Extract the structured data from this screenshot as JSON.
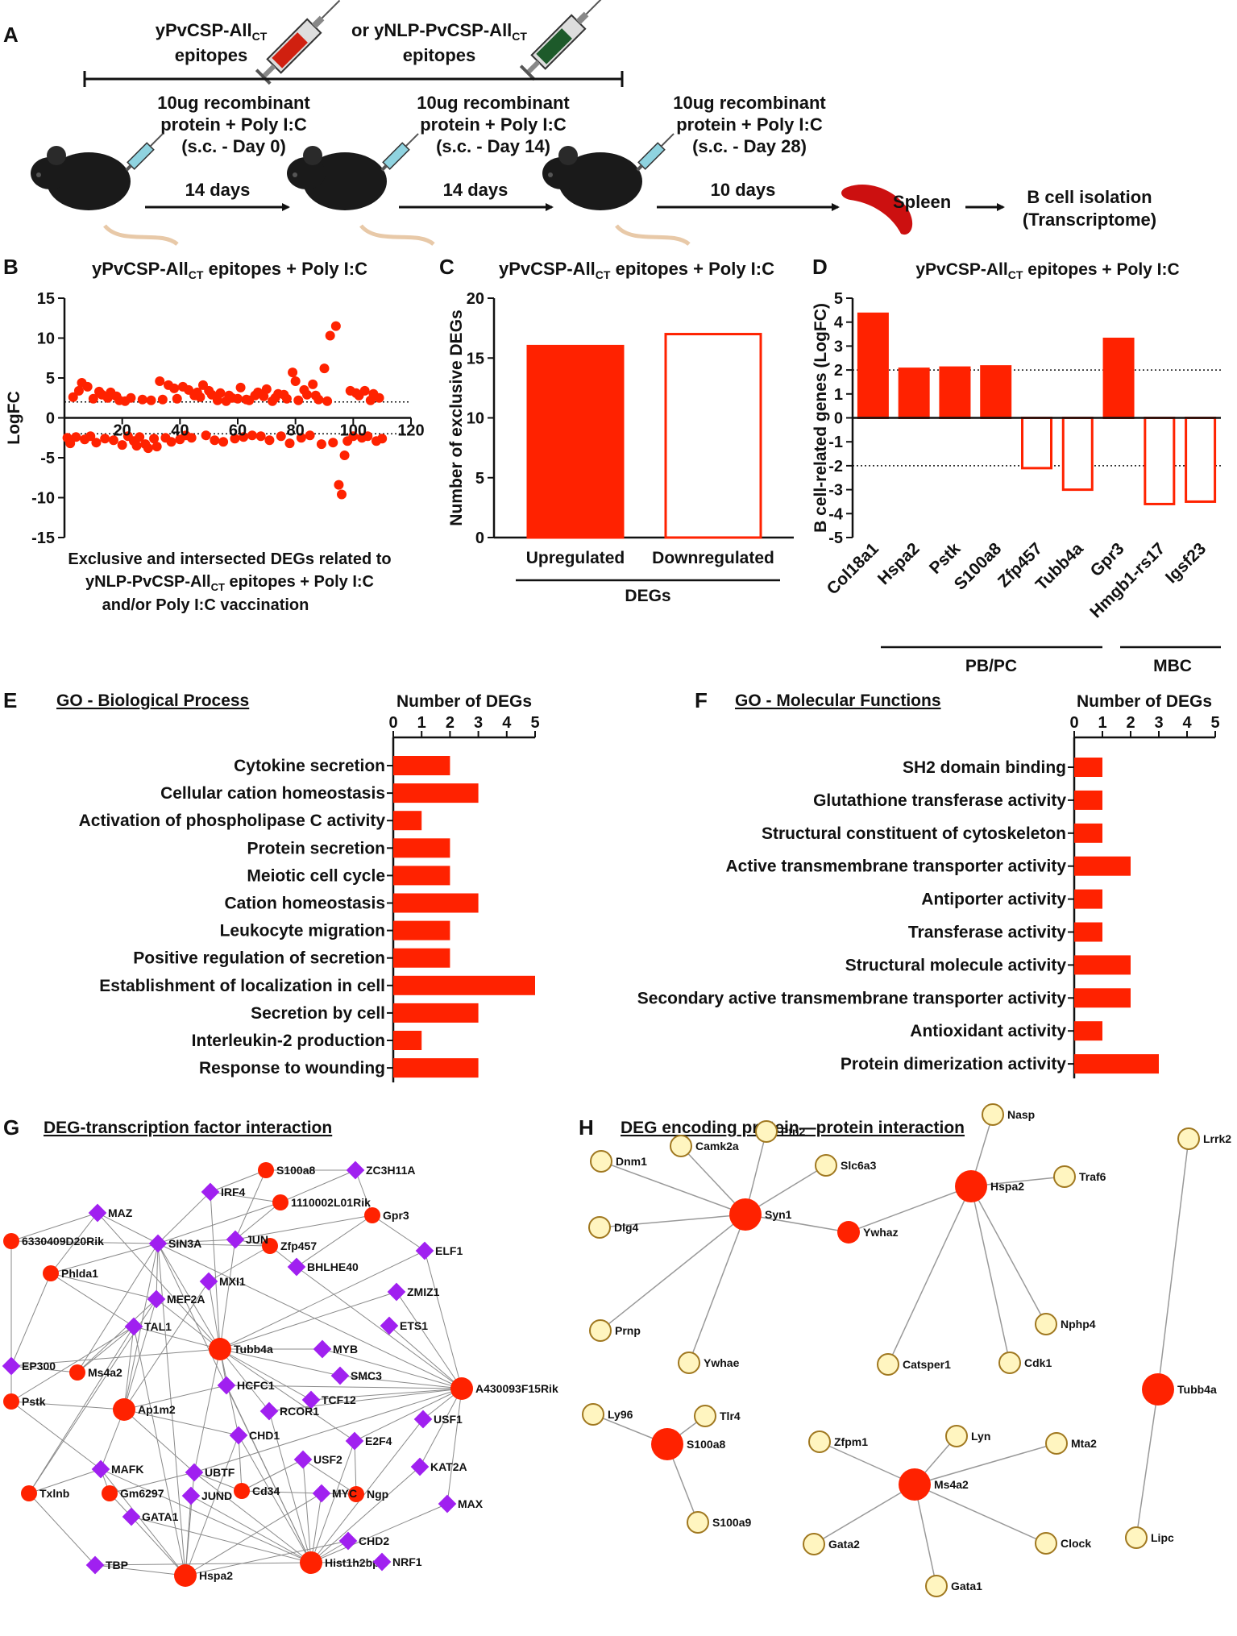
{
  "panel_labels": {
    "A": "A",
    "B": "B",
    "C": "C",
    "D": "D",
    "E": "E",
    "F": "F",
    "G": "G",
    "H": "H"
  },
  "colors": {
    "red": "#ff2200",
    "purple": "#a020f0",
    "cream": "#fff5c0",
    "cream_stroke": "#a07820",
    "edge": "#999999"
  },
  "panelA": {
    "epitope1_line1": "yPvCSP-All",
    "epitope1_sub": "CT",
    "epitope1_line2": "epitopes",
    "epitope2_line1": "or yNLP-PvCSP-All",
    "epitope2_sub": "CT",
    "epitope2_line2": "epitopes",
    "dose_line1": "10ug recombinant",
    "dose_line2": "protein + Poly I:C",
    "dose_day0": "(s.c. - Day 0)",
    "dose_day14": "(s.c. - Day 14)",
    "dose_day28": "(s.c. - Day 28)",
    "interval1": "14 days",
    "interval2": "14 days",
    "interval3": "10 days",
    "spleen": "Spleen",
    "isolation_line1": "B cell isolation",
    "isolation_line2": "(Transcriptome)"
  },
  "panelB": {
    "title_pre": "yPvCSP-All",
    "title_sub": "CT",
    "title_post": " epitopes + Poly I:C",
    "xlabel_line1": "Exclusive and intersected DEGs related to",
    "xlabel_line2_pre": "yNLP-PvCSP-All",
    "xlabel_line2_sub": "CT",
    "xlabel_line2_post": " epitopes + Poly I:C",
    "xlabel_line3": "and/or Poly I:C vaccination"
  },
  "panelC": {
    "title_pre": "yPvCSP-All",
    "title_sub": "CT",
    "title_post": " epitopes + Poly I:C",
    "group_label": "DEGs"
  },
  "panelD": {
    "title_pre": "yPvCSP-All",
    "title_sub": "CT",
    "title_post": " epitopes + Poly I:C",
    "group1": "PB/PC",
    "group2": "MBC"
  },
  "panelE": {
    "title": "GO - Biological Process"
  },
  "panelF": {
    "title": "GO - Molecular Functions"
  },
  "panelG": {
    "title": "DEG-transcription factor interaction"
  },
  "panelH": {
    "title": "DEG encoding  protein—protein interaction"
  },
  "chart_data": [
    {
      "id": "B",
      "type": "scatter",
      "title": "yPvCSP-AllCT epitopes + Poly I:C",
      "ylabel": "LogFC",
      "xlim": [
        0,
        120
      ],
      "ylim": [
        -15,
        15
      ],
      "xticks": [
        20,
        40,
        60,
        80,
        100,
        120
      ],
      "yticks": [
        -15,
        -10,
        -5,
        0,
        5,
        10,
        15
      ],
      "thresholds": [
        2,
        -2
      ],
      "x": [
        1,
        2,
        3,
        4,
        5,
        6,
        7,
        8,
        9,
        10,
        11,
        12,
        13,
        14,
        15,
        16,
        17,
        18,
        19,
        20,
        21,
        22,
        23,
        24,
        25,
        26,
        27,
        28,
        29,
        30,
        31,
        32,
        33,
        34,
        35,
        36,
        37,
        38,
        39,
        40,
        41,
        42,
        43,
        44,
        45,
        46,
        47,
        48,
        49,
        50,
        51,
        52,
        53,
        54,
        55,
        56,
        57,
        58,
        59,
        60,
        61,
        62,
        63,
        64,
        65,
        66,
        67,
        68,
        69,
        70,
        71,
        72,
        73,
        74,
        75,
        76,
        77,
        78,
        79,
        80,
        81,
        82,
        83,
        84,
        85,
        86,
        87,
        88,
        89,
        90,
        91,
        92,
        93,
        94,
        95,
        96,
        97,
        98,
        99,
        100,
        101,
        102,
        103,
        104,
        105,
        106,
        107,
        108,
        109,
        110
      ],
      "y": [
        -2.5,
        -3.2,
        2.6,
        -2.4,
        3.4,
        4.4,
        -2.7,
        3.9,
        -2.3,
        2.4,
        -3.1,
        3.3,
        2.9,
        -2.6,
        2.5,
        3.2,
        -2.8,
        2.7,
        2.2,
        -3.4,
        2.1,
        -2.3,
        2.5,
        -2.9,
        -3.5,
        -2.4,
        2.3,
        -3.3,
        -3.8,
        2.2,
        -2.6,
        -3.6,
        4.6,
        2.3,
        -2.5,
        4.1,
        -3.0,
        3.7,
        2.4,
        -2.7,
        3.9,
        -2.2,
        3.5,
        -2.5,
        2.8,
        3.2,
        2.6,
        4.1,
        -2.2,
        3.4,
        2.9,
        -2.8,
        2.2,
        3.1,
        -3.0,
        2.1,
        2.8,
        2.5,
        -2.6,
        2.4,
        3.8,
        -2.4,
        2.3,
        2.2,
        -2.2,
        2.8,
        3.2,
        -2.3,
        2.7,
        3.6,
        -2.8,
        2.1,
        2.5,
        3.0,
        -2.3,
        2.9,
        2.4,
        -3.2,
        5.7,
        4.6,
        2.2,
        -2.5,
        3.5,
        2.9,
        -2.2,
        4.2,
        2.8,
        2.3,
        -3.3,
        6.2,
        2.1,
        10.3,
        -3.1,
        11.5,
        -8.4,
        -9.6,
        -4.7,
        -2.9,
        3.4,
        -2.3,
        3.1,
        2.8,
        -2.5,
        3.4,
        -2.3,
        2.2,
        3.0,
        -2.9,
        2.5,
        -2.6
      ]
    },
    {
      "id": "C",
      "type": "bar",
      "ylabel": "Number of exclusive DEGs",
      "categories": [
        "Upregulated",
        "Downregulated"
      ],
      "values": [
        16,
        17
      ],
      "fill": [
        "#ff2200",
        "#ffffff"
      ],
      "ylim": [
        0,
        20
      ],
      "yticks": [
        0,
        5,
        10,
        15,
        20
      ]
    },
    {
      "id": "D",
      "type": "bar",
      "ylabel": "B cell-related genes (LogFC)",
      "categories": [
        "Col18a1",
        "Hspa2",
        "Pstk",
        "S100a8",
        "Zfp457",
        "Tubb4a",
        "Gpr3",
        "Hmgb1-rs17",
        "Igsf23"
      ],
      "values": [
        4.35,
        2.05,
        2.1,
        2.15,
        -2.1,
        -3.0,
        3.3,
        -3.6,
        -3.5
      ],
      "ylim": [
        -5,
        5
      ],
      "yticks": [
        -5,
        -4,
        -3,
        -2,
        -1,
        0,
        1,
        2,
        3,
        4,
        5
      ],
      "thresholds": [
        2,
        -2
      ]
    },
    {
      "id": "E",
      "type": "bar",
      "orientation": "horizontal",
      "xlabel": "Number of DEGs",
      "xlim": [
        0,
        5
      ],
      "xticks": [
        0,
        1,
        2,
        3,
        4,
        5
      ],
      "categories": [
        "Cytokine secretion",
        "Cellular cation homeostasis",
        "Activation of phospholipase C activity",
        "Protein secretion",
        "Meiotic cell cycle",
        "Cation homeostasis",
        "Leukocyte migration",
        "Positive regulation of secretion",
        "Establishment of localization in cell",
        "Secretion by cell",
        "Interleukin-2 production",
        "Response to wounding"
      ],
      "values": [
        2,
        3,
        1,
        2,
        2,
        3,
        2,
        2,
        5,
        3,
        1,
        3
      ]
    },
    {
      "id": "F",
      "type": "bar",
      "orientation": "horizontal",
      "xlabel": "Number of DEGs",
      "xlim": [
        0,
        5
      ],
      "xticks": [
        0,
        1,
        2,
        3,
        4,
        5
      ],
      "categories": [
        "SH2 domain binding",
        "Glutathione transferase activity",
        "Structural constituent of cytoskeleton",
        "Active transmembrane transporter activity",
        "Antiporter activity",
        "Transferase activity",
        "Structural molecule activity",
        "Secondary active transmembrane transporter activity",
        "Antioxidant activity",
        "Protein dimerization activity"
      ],
      "values": [
        1,
        1,
        1,
        2,
        1,
        1,
        2,
        2,
        1,
        3
      ]
    }
  ],
  "networkG": {
    "genes": [
      "S100a8",
      "1110002L01Rik",
      "Gpr3",
      "Zfp457",
      "6330409D20Rik",
      "Phlda1",
      "Tubb4a",
      "Ms4a2",
      "A430093F15Rik",
      "Pstk",
      "Ap1m2",
      "Txlnb",
      "Gm6297",
      "Cd34",
      "Ngp",
      "Hspa2",
      "Hist1h2bp"
    ],
    "tfs": [
      "ZC3H11A",
      "IRF4",
      "MAZ",
      "SIN3A",
      "JUN",
      "BHLHE40",
      "ELF1",
      "MXI1",
      "MEF2A",
      "ZMIZ1",
      "ETS1",
      "TAL1",
      "MYB",
      "EP300",
      "SMC3",
      "HCFC1",
      "TCF12",
      "RCOR1",
      "USF1",
      "CHD1",
      "E2F4",
      "MAFK",
      "UBTF",
      "USF2",
      "KAT2A",
      "JUND",
      "MYC",
      "MAX",
      "GATA1",
      "CHD2",
      "TBP",
      "NRF1"
    ]
  },
  "networkH": {
    "hubs": [
      "Syn1",
      "Ywhaz",
      "Hspa2",
      "Tubb4a",
      "S100a8",
      "Ms4a2"
    ],
    "partners": [
      "Camk2a",
      "Pfn2",
      "Dnm1",
      "Slc6a3",
      "Dlg4",
      "Prnp",
      "Ywhae",
      "Nasp",
      "Traf6",
      "Nphp4",
      "Catsper1",
      "Cdk1",
      "Lrrk2",
      "Lipc",
      "Tlr4",
      "Ly96",
      "S100a9",
      "Lyn",
      "Zfpm1",
      "Mta2",
      "Gata2",
      "Clock",
      "Gata1"
    ]
  }
}
